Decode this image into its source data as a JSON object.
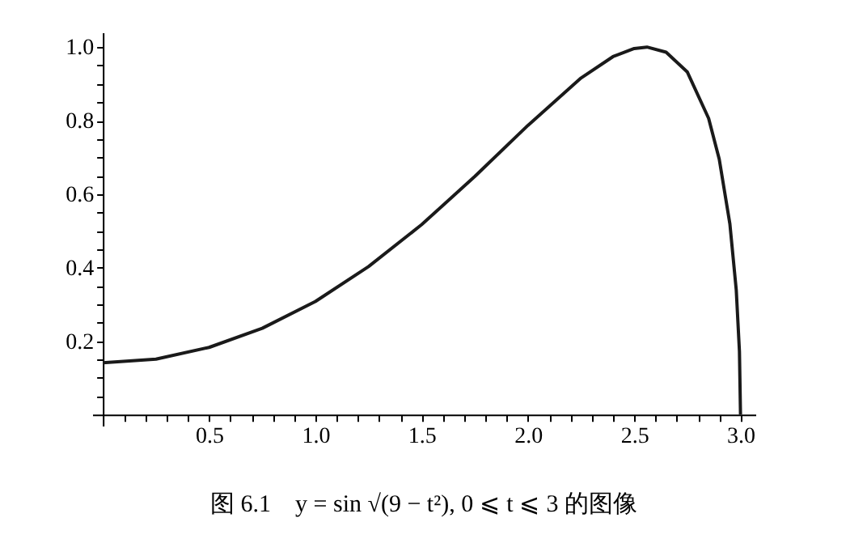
{
  "chart_data": {
    "type": "line",
    "annotations": [
      "图 6.1　y = sin √(9 − t²), 0 ⩽ t ⩽ 3 的图像"
    ],
    "x": [
      0,
      0.25,
      0.5,
      0.75,
      1.0,
      1.25,
      1.5,
      1.75,
      2.0,
      2.25,
      2.4,
      2.5,
      2.56,
      2.65,
      2.75,
      2.85,
      2.9,
      2.95,
      2.98,
      2.995,
      3.0
    ],
    "series": [
      {
        "color": "#1a1a1a",
        "values": [
          0.141,
          0.151,
          0.183,
          0.235,
          0.308,
          0.403,
          0.517,
          0.648,
          0.787,
          0.916,
          0.974,
          0.996,
          1.0,
          0.986,
          0.932,
          0.806,
          0.695,
          0.519,
          0.339,
          0.172,
          0.0
        ]
      }
    ],
    "xlim": [
      -0.05,
      3.07
    ],
    "ylim": [
      -0.03,
      1.04
    ],
    "xticks": [
      {
        "value": 0.1,
        "label": null
      },
      {
        "value": 0.2,
        "label": null
      },
      {
        "value": 0.3,
        "label": null
      },
      {
        "value": 0.4,
        "label": null
      },
      {
        "value": 0.5,
        "label": "0.5"
      },
      {
        "value": 0.6,
        "label": null
      },
      {
        "value": 0.7,
        "label": null
      },
      {
        "value": 0.8,
        "label": null
      },
      {
        "value": 0.9,
        "label": null
      },
      {
        "value": 1.0,
        "label": "1.0"
      },
      {
        "value": 1.1,
        "label": null
      },
      {
        "value": 1.2,
        "label": null
      },
      {
        "value": 1.3,
        "label": null
      },
      {
        "value": 1.4,
        "label": null
      },
      {
        "value": 1.5,
        "label": "1.5"
      },
      {
        "value": 1.6,
        "label": null
      },
      {
        "value": 1.7,
        "label": null
      },
      {
        "value": 1.8,
        "label": null
      },
      {
        "value": 1.9,
        "label": null
      },
      {
        "value": 2.0,
        "label": "2.0"
      },
      {
        "value": 2.1,
        "label": null
      },
      {
        "value": 2.2,
        "label": null
      },
      {
        "value": 2.3,
        "label": null
      },
      {
        "value": 2.4,
        "label": null
      },
      {
        "value": 2.5,
        "label": "2.5"
      },
      {
        "value": 2.6,
        "label": null
      },
      {
        "value": 2.7,
        "label": null
      },
      {
        "value": 2.8,
        "label": null
      },
      {
        "value": 2.9,
        "label": null
      },
      {
        "value": 3.0,
        "label": "3.0"
      }
    ],
    "yticks": [
      {
        "value": 0.05,
        "label": null
      },
      {
        "value": 0.1,
        "label": null
      },
      {
        "value": 0.15,
        "label": null
      },
      {
        "value": 0.2,
        "label": "0.2"
      },
      {
        "value": 0.25,
        "label": null
      },
      {
        "value": 0.3,
        "label": null
      },
      {
        "value": 0.35,
        "label": null
      },
      {
        "value": 0.4,
        "label": "0.4"
      },
      {
        "value": 0.45,
        "label": null
      },
      {
        "value": 0.5,
        "label": null
      },
      {
        "value": 0.55,
        "label": null
      },
      {
        "value": 0.6,
        "label": "0.6"
      },
      {
        "value": 0.65,
        "label": null
      },
      {
        "value": 0.7,
        "label": null
      },
      {
        "value": 0.75,
        "label": null
      },
      {
        "value": 0.8,
        "label": "0.8"
      },
      {
        "value": 0.85,
        "label": null
      },
      {
        "value": 0.9,
        "label": null
      },
      {
        "value": 0.95,
        "label": null
      },
      {
        "value": 1.0,
        "label": "1.0"
      }
    ],
    "grid": false,
    "marker": "none",
    "line_style": "solid"
  }
}
